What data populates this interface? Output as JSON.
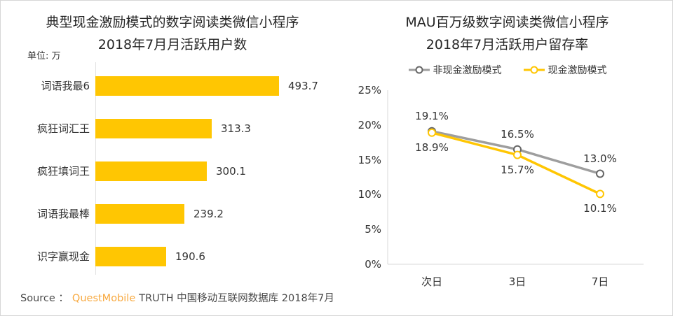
{
  "page": {
    "background": "#ffffff",
    "border_color": "#d6d6d6"
  },
  "chart_data": [
    {
      "id": "cash-incentive-mau-bar",
      "type": "bar",
      "orientation": "horizontal",
      "title": "典型现金激励模式的数字阅读类微信小程序",
      "subtitle": "2018年7月月活跃用户数",
      "unit_label": "单位: 万",
      "categories": [
        "词语我最6",
        "疯狂词汇王",
        "疯狂填词王",
        "词语我最棒",
        "识字赢现金"
      ],
      "values": [
        493.7,
        313.3,
        300.1,
        239.2,
        190.6
      ],
      "bar_color": "#FFC602",
      "value_label_color": "#333333",
      "grid": false,
      "legend": false
    },
    {
      "id": "retention-rate-line",
      "type": "line",
      "title": "MAU百万级数字阅读类微信小程序",
      "subtitle": "2018年7月活跃用户留存率",
      "categories": [
        "次日",
        "3日",
        "7日"
      ],
      "series": [
        {
          "name": "非现金激励模式",
          "color": "#9E9E9E",
          "marker_color": "#666666",
          "values": [
            19.1,
            16.5,
            13.0
          ],
          "label_position": "above"
        },
        {
          "name": "现金激励模式",
          "color": "#FFC602",
          "marker_color": "#FFC602",
          "values": [
            18.9,
            15.7,
            10.1
          ],
          "label_position": "below"
        }
      ],
      "ylim": [
        0,
        25
      ],
      "yticks": [
        "25%",
        "20%",
        "15%",
        "10%",
        "5%",
        "0%"
      ],
      "legend_position": "top",
      "grid": false,
      "axis_color": "#d9d9d9"
    }
  ],
  "footer": {
    "prefix": "Source ：",
    "brand": "QuestMobile",
    "brand_color": "#F8A93F",
    "rest": "TRUTH 中国移动互联网数据库 2018年7月"
  }
}
